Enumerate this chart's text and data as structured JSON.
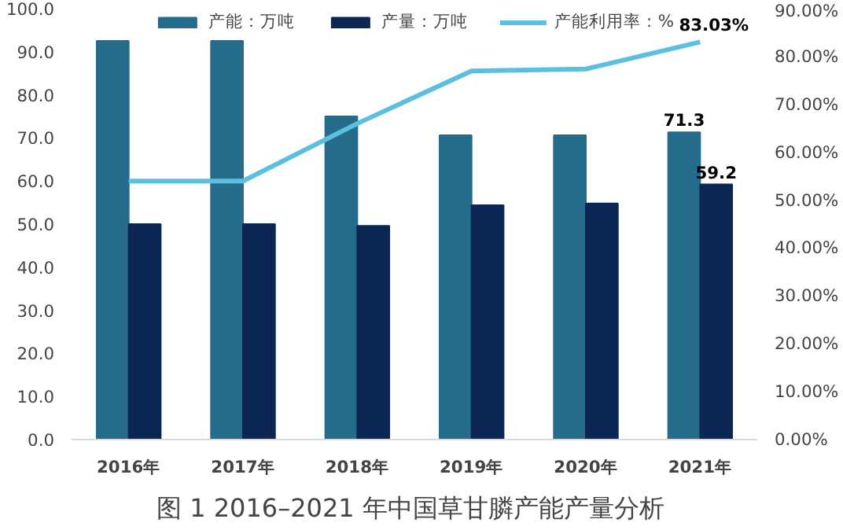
{
  "chart_data": {
    "type": "bar",
    "title": "图 1  2016–2021 年中国草甘膦产能产量分析",
    "categories": [
      "2016年",
      "2017年",
      "2018年",
      "2019年",
      "2020年",
      "2021年"
    ],
    "series": [
      {
        "name": "产能：万吨",
        "color": "#246b8c",
        "values": [
          92.5,
          92.5,
          75.0,
          70.6,
          70.6,
          71.3
        ],
        "value_labels": [
          null,
          null,
          null,
          null,
          null,
          "71.3"
        ]
      },
      {
        "name": "产量：万吨",
        "color": "#0c2654",
        "values": [
          50.0,
          50.0,
          49.6,
          54.4,
          54.8,
          59.2
        ],
        "value_labels": [
          null,
          null,
          null,
          null,
          null,
          "59.2"
        ]
      },
      {
        "name": "产能利用率：%",
        "color": "#5bc0e0",
        "type": "line",
        "axis": "y2",
        "values": [
          54.0,
          54.0,
          66.0,
          77.0,
          77.4,
          83.03
        ],
        "value_labels": [
          null,
          null,
          null,
          null,
          null,
          "83.03%"
        ]
      }
    ],
    "ylim": [
      0,
      100
    ],
    "yticks": [
      {
        "value": 0,
        "label": "0.0"
      },
      {
        "value": 10,
        "label": "10.0"
      },
      {
        "value": 20,
        "label": "20.0"
      },
      {
        "value": 30,
        "label": "30.0"
      },
      {
        "value": 40,
        "label": "40.0"
      },
      {
        "value": 50,
        "label": "50.0"
      },
      {
        "value": 60,
        "label": "60.0"
      },
      {
        "value": 70,
        "label": "70.0"
      },
      {
        "value": 80,
        "label": "80.0"
      },
      {
        "value": 90,
        "label": "90.0"
      },
      {
        "value": 100,
        "label": "100.0"
      }
    ],
    "y2lim": [
      0,
      90
    ],
    "y2ticks": [
      {
        "value": 0,
        "label": "0.00%"
      },
      {
        "value": 10,
        "label": "10.00%"
      },
      {
        "value": 20,
        "label": "20.00%"
      },
      {
        "value": 30,
        "label": "30.00%"
      },
      {
        "value": 40,
        "label": "40.00%"
      },
      {
        "value": 50,
        "label": "50.00%"
      },
      {
        "value": 60,
        "label": "60.00%"
      },
      {
        "value": 70,
        "label": "70.00%"
      },
      {
        "value": 80,
        "label": "80.00%"
      },
      {
        "value": 90,
        "label": "90.00%"
      }
    ],
    "grid": false,
    "legend": "top"
  }
}
